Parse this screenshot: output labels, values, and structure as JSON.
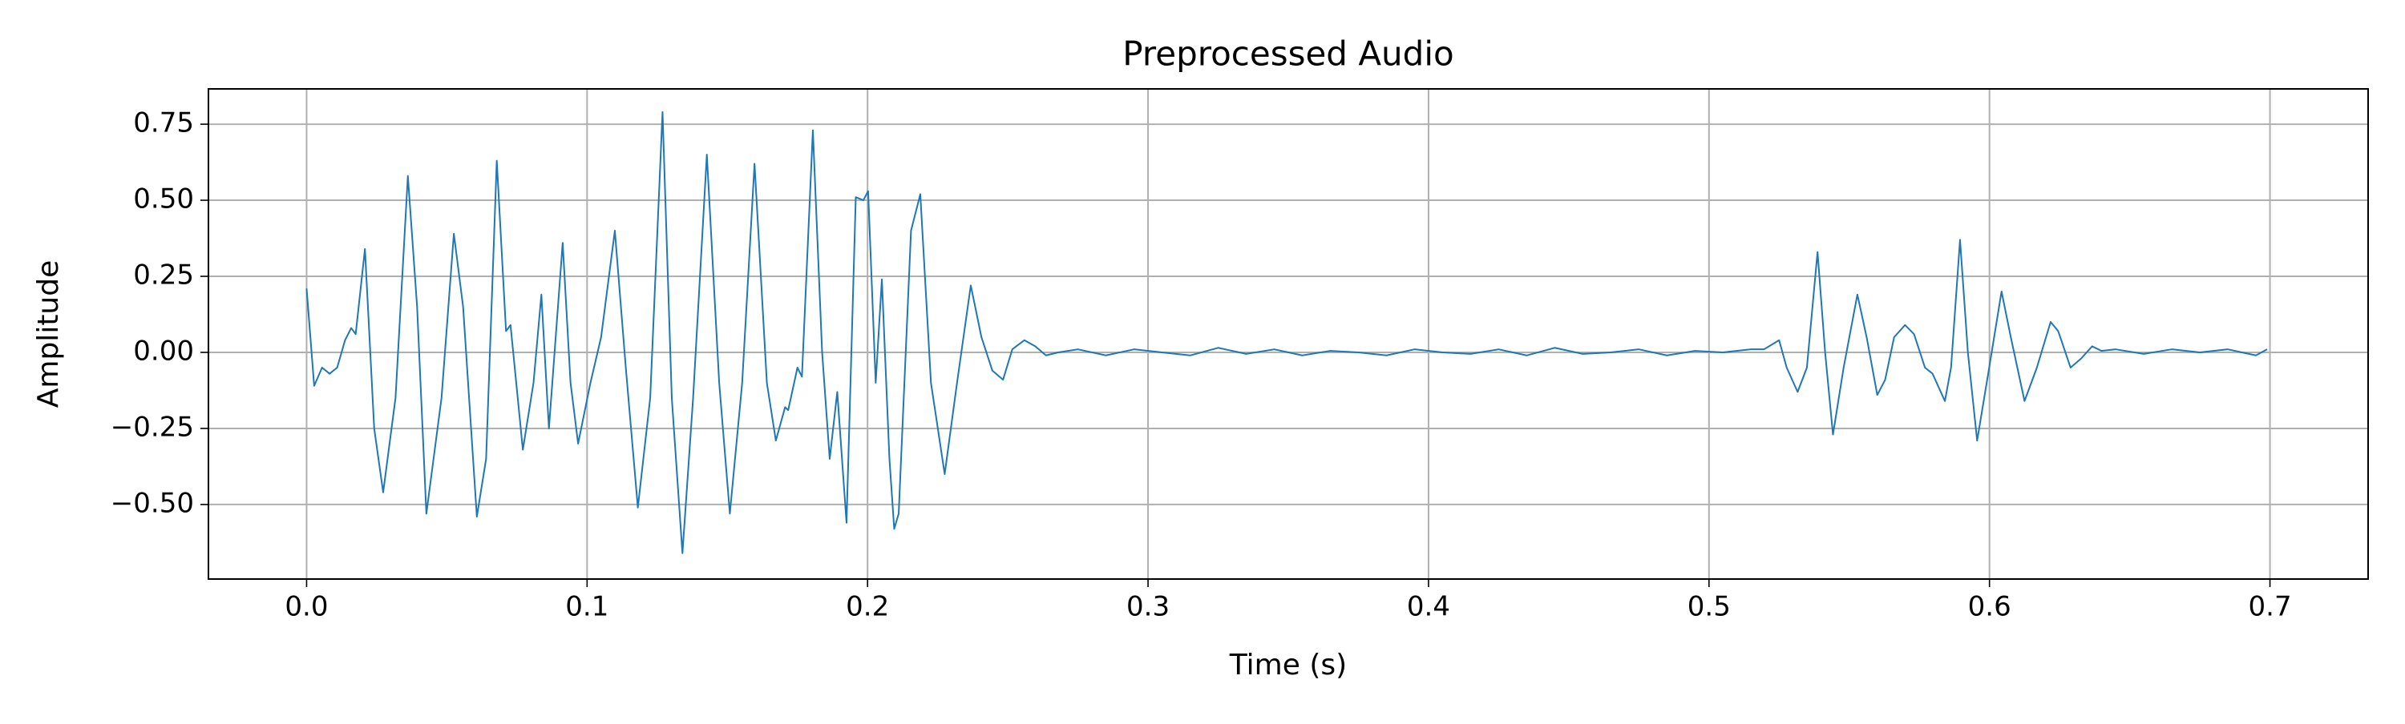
{
  "chart_data": {
    "type": "line",
    "title": "Preprocessed Audio",
    "xlabel": "Time (s)",
    "ylabel": "Amplitude",
    "color": "#1f77b4",
    "grid": true,
    "xlim": [
      -0.035,
      0.735
    ],
    "ylim": [
      -0.745,
      0.866
    ],
    "xticks": [
      {
        "value": 0,
        "label": "0.0"
      },
      0.1,
      0.2,
      0.3,
      0.4,
      0.5,
      0.6,
      0.7
    ],
    "yticks": [
      {
        "value": -0.5,
        "label": "−0.50"
      },
      {
        "value": -0.25,
        "label": "−0.25"
      },
      {
        "value": 0,
        "label": "0.00"
      },
      0.25,
      {
        "value": 0.5,
        "label": "0.50"
      },
      0.75
    ],
    "x": [
      0,
      0.0027,
      0.0055,
      0.0082,
      0.0109,
      0.0137,
      0.0159,
      0.0175,
      0.0208,
      0.0241,
      0.0273,
      0.0317,
      0.0361,
      0.0394,
      0.0427,
      0.0481,
      0.0525,
      0.0558,
      0.0607,
      0.064,
      0.0678,
      0.0711,
      0.0727,
      0.0771,
      0.0809,
      0.0837,
      0.0864,
      0.0913,
      0.0941,
      0.0968,
      0.1012,
      0.105,
      0.1099,
      0.1138,
      0.1181,
      0.1225,
      0.1269,
      0.1302,
      0.134,
      0.1378,
      0.1427,
      0.1471,
      0.1509,
      0.1553,
      0.1597,
      0.1641,
      0.1673,
      0.1706,
      0.1717,
      0.175,
      0.1766,
      0.1805,
      0.1838,
      0.1865,
      0.1892,
      0.1925,
      0.1958,
      0.1985,
      0.2002,
      0.2029,
      0.2051,
      0.2078,
      0.2095,
      0.2111,
      0.2155,
      0.2188,
      0.2226,
      0.2275,
      0.2319,
      0.2368,
      0.2406,
      0.2445,
      0.2483,
      0.2516,
      0.2559,
      0.2598,
      0.2636,
      0.268,
      0.275,
      0.285,
      0.295,
      0.305,
      0.315,
      0.325,
      0.335,
      0.345,
      0.355,
      0.365,
      0.375,
      0.385,
      0.395,
      0.405,
      0.415,
      0.425,
      0.435,
      0.445,
      0.455,
      0.465,
      0.475,
      0.485,
      0.495,
      0.505,
      0.515,
      0.5196,
      0.525,
      0.5277,
      0.5316,
      0.5349,
      0.5387,
      0.5414,
      0.5442,
      0.548,
      0.5529,
      0.5562,
      0.56,
      0.5628,
      0.566,
      0.5699,
      0.5731,
      0.577,
      0.5797,
      0.5841,
      0.5863,
      0.5895,
      0.5923,
      0.5956,
      0.5999,
      0.6043,
      0.6076,
      0.6125,
      0.6169,
      0.6218,
      0.6245,
      0.6289,
      0.6327,
      0.6366,
      0.6399,
      0.645,
      0.655,
      0.665,
      0.675,
      0.685,
      0.695,
      0.699
    ],
    "values": [
      0.21,
      -0.11,
      -0.05,
      -0.07,
      -0.05,
      0.04,
      0.08,
      0.06,
      0.34,
      -0.25,
      -0.46,
      -0.15,
      0.58,
      0.15,
      -0.53,
      -0.15,
      0.39,
      0.15,
      -0.54,
      -0.35,
      0.63,
      0.07,
      0.09,
      -0.32,
      -0.1,
      0.19,
      -0.25,
      0.36,
      -0.1,
      -0.3,
      -0.1,
      0.05,
      0.4,
      -0.05,
      -0.51,
      -0.15,
      0.79,
      -0.15,
      -0.66,
      -0.15,
      0.65,
      -0.1,
      -0.53,
      -0.1,
      0.62,
      -0.1,
      -0.29,
      -0.18,
      -0.19,
      -0.05,
      -0.08,
      0.73,
      0,
      -0.35,
      -0.13,
      -0.56,
      0.51,
      0.5,
      0.53,
      -0.1,
      0.24,
      -0.35,
      -0.58,
      -0.53,
      0.4,
      0.52,
      -0.1,
      -0.4,
      -0.1,
      0.22,
      0.05,
      -0.06,
      -0.09,
      0.01,
      0.04,
      0.02,
      -0.01,
      0,
      0.01,
      -0.01,
      0.01,
      0,
      -0.01,
      0.015,
      -0.005,
      0.01,
      -0.01,
      0.005,
      0,
      -0.01,
      0.01,
      0,
      -0.005,
      0.01,
      -0.01,
      0.015,
      -0.005,
      0,
      0.01,
      -0.01,
      0.005,
      0,
      0.01,
      0.01,
      0.04,
      -0.05,
      -0.13,
      -0.05,
      0.33,
      0,
      -0.27,
      -0.05,
      0.19,
      0.05,
      -0.14,
      -0.09,
      0.05,
      0.09,
      0.06,
      -0.05,
      -0.07,
      -0.16,
      -0.05,
      0.37,
      0,
      -0.29,
      -0.05,
      0.2,
      0.05,
      -0.16,
      -0.05,
      0.1,
      0.07,
      -0.05,
      -0.02,
      0.02,
      0.005,
      0.01,
      -0.005,
      0.01,
      0,
      0.01,
      -0.01,
      0.01
    ]
  }
}
